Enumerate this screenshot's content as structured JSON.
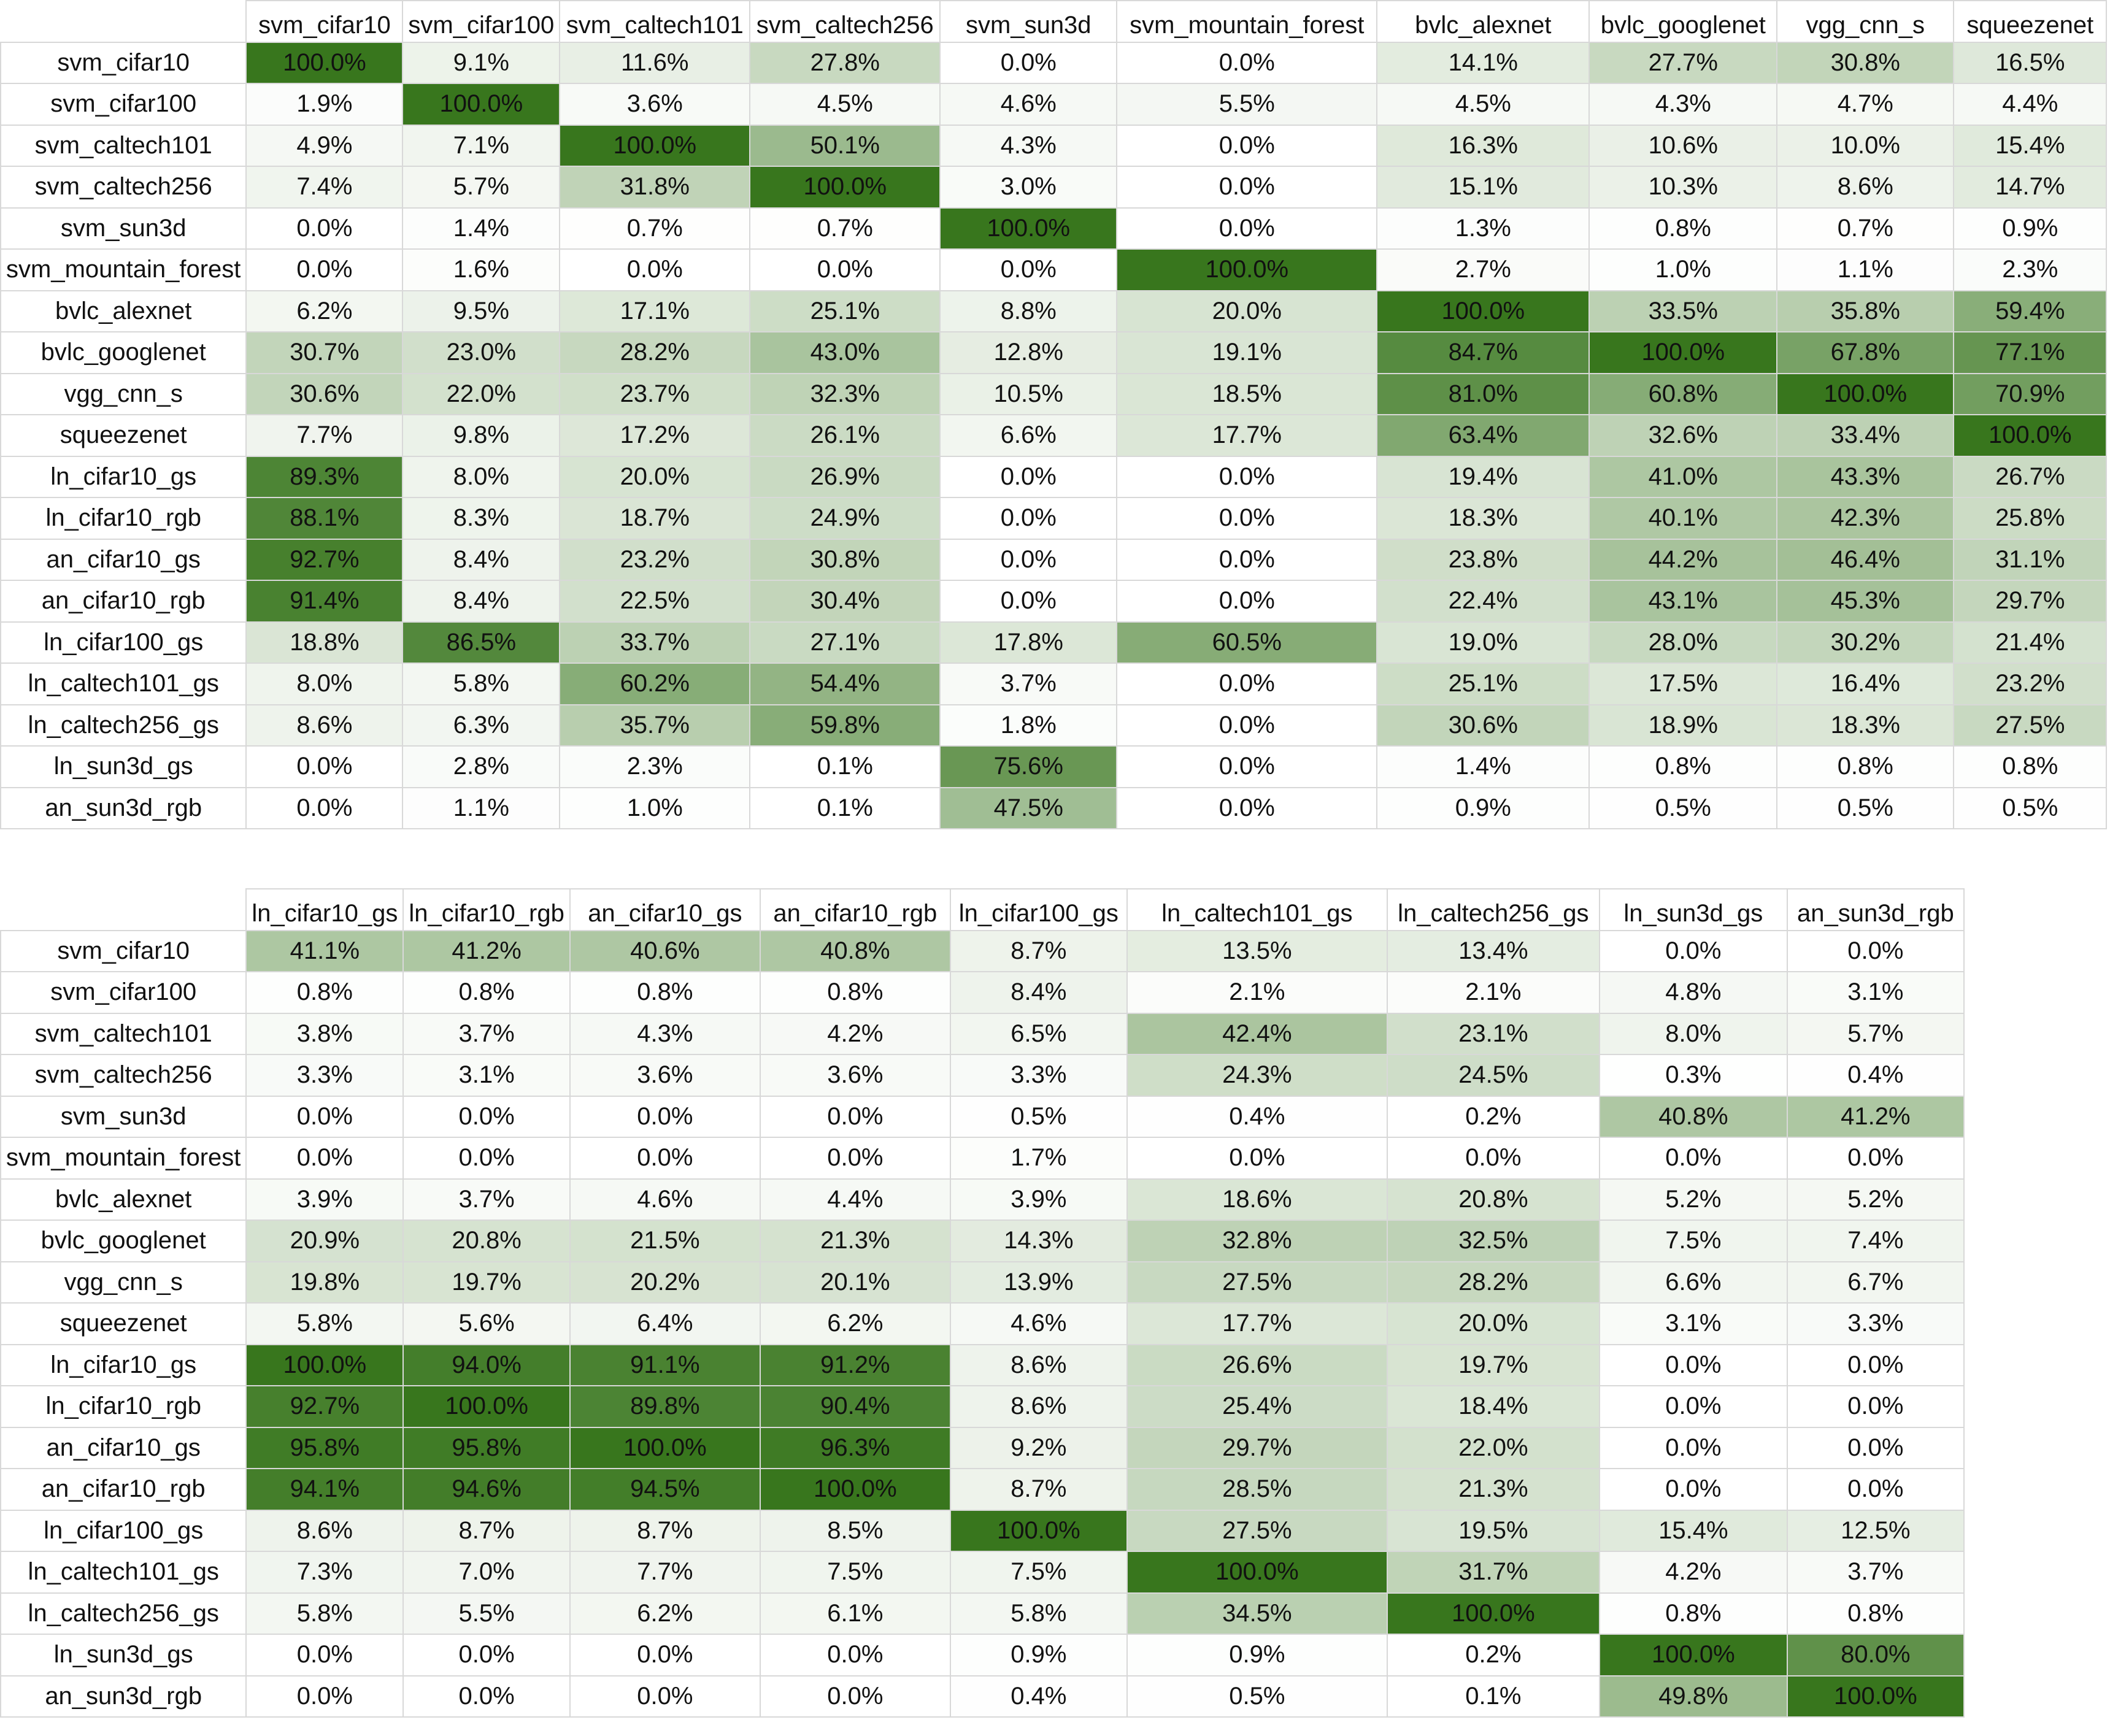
{
  "chart_data": [
    {
      "type": "heatmap",
      "title": "",
      "color_scale": {
        "low": "#ffffff",
        "high": "#38761d"
      },
      "columns": [
        "svm_cifar10",
        "svm_cifar100",
        "svm_caltech101",
        "svm_caltech256",
        "svm_sun3d",
        "svm_mountain_forest",
        "bvlc_alexnet",
        "bvlc_googlenet",
        "vgg_cnn_s",
        "squeezenet"
      ],
      "rows": [
        "svm_cifar10",
        "svm_cifar100",
        "svm_caltech101",
        "svm_caltech256",
        "svm_sun3d",
        "svm_mountain_forest",
        "bvlc_alexnet",
        "bvlc_googlenet",
        "vgg_cnn_s",
        "squeezenet",
        "ln_cifar10_gs",
        "ln_cifar10_rgb",
        "an_cifar10_gs",
        "an_cifar10_rgb",
        "ln_cifar100_gs",
        "ln_caltech101_gs",
        "ln_caltech256_gs",
        "ln_sun3d_gs",
        "an_sun3d_rgb"
      ],
      "values": [
        [
          "100.0%",
          "9.1%",
          "11.6%",
          "27.8%",
          "0.0%",
          "0.0%",
          "14.1%",
          "27.7%",
          "30.8%",
          "16.5%"
        ],
        [
          "1.9%",
          "100.0%",
          "3.6%",
          "4.5%",
          "4.6%",
          "5.5%",
          "4.5%",
          "4.3%",
          "4.7%",
          "4.4%"
        ],
        [
          "4.9%",
          "7.1%",
          "100.0%",
          "50.1%",
          "4.3%",
          "0.0%",
          "16.3%",
          "10.6%",
          "10.0%",
          "15.4%"
        ],
        [
          "7.4%",
          "5.7%",
          "31.8%",
          "100.0%",
          "3.0%",
          "0.0%",
          "15.1%",
          "10.3%",
          "8.6%",
          "14.7%"
        ],
        [
          "0.0%",
          "1.4%",
          "0.7%",
          "0.7%",
          "100.0%",
          "0.0%",
          "1.3%",
          "0.8%",
          "0.7%",
          "0.9%"
        ],
        [
          "0.0%",
          "1.6%",
          "0.0%",
          "0.0%",
          "0.0%",
          "100.0%",
          "2.7%",
          "1.0%",
          "1.1%",
          "2.3%"
        ],
        [
          "6.2%",
          "9.5%",
          "17.1%",
          "25.1%",
          "8.8%",
          "20.0%",
          "100.0%",
          "33.5%",
          "35.8%",
          "59.4%"
        ],
        [
          "30.7%",
          "23.0%",
          "28.2%",
          "43.0%",
          "12.8%",
          "19.1%",
          "84.7%",
          "100.0%",
          "67.8%",
          "77.1%"
        ],
        [
          "30.6%",
          "22.0%",
          "23.7%",
          "32.3%",
          "10.5%",
          "18.5%",
          "81.0%",
          "60.8%",
          "100.0%",
          "70.9%"
        ],
        [
          "7.7%",
          "9.8%",
          "17.2%",
          "26.1%",
          "6.6%",
          "17.7%",
          "63.4%",
          "32.6%",
          "33.4%",
          "100.0%"
        ],
        [
          "89.3%",
          "8.0%",
          "20.0%",
          "26.9%",
          "0.0%",
          "0.0%",
          "19.4%",
          "41.0%",
          "43.3%",
          "26.7%"
        ],
        [
          "88.1%",
          "8.3%",
          "18.7%",
          "24.9%",
          "0.0%",
          "0.0%",
          "18.3%",
          "40.1%",
          "42.3%",
          "25.8%"
        ],
        [
          "92.7%",
          "8.4%",
          "23.2%",
          "30.8%",
          "0.0%",
          "0.0%",
          "23.8%",
          "44.2%",
          "46.4%",
          "31.1%"
        ],
        [
          "91.4%",
          "8.4%",
          "22.5%",
          "30.4%",
          "0.0%",
          "0.0%",
          "22.4%",
          "43.1%",
          "45.3%",
          "29.7%"
        ],
        [
          "18.8%",
          "86.5%",
          "33.7%",
          "27.1%",
          "17.8%",
          "60.5%",
          "19.0%",
          "28.0%",
          "30.2%",
          "21.4%"
        ],
        [
          "8.0%",
          "5.8%",
          "60.2%",
          "54.4%",
          "3.7%",
          "0.0%",
          "25.1%",
          "17.5%",
          "16.4%",
          "23.2%"
        ],
        [
          "8.6%",
          "6.3%",
          "35.7%",
          "59.8%",
          "1.8%",
          "0.0%",
          "30.6%",
          "18.9%",
          "18.3%",
          "27.5%"
        ],
        [
          "0.0%",
          "2.8%",
          "2.3%",
          "0.1%",
          "75.6%",
          "0.0%",
          "1.4%",
          "0.8%",
          "0.8%",
          "0.8%"
        ],
        [
          "0.0%",
          "1.1%",
          "1.0%",
          "0.1%",
          "47.5%",
          "0.0%",
          "0.9%",
          "0.5%",
          "0.5%",
          "0.5%"
        ]
      ]
    },
    {
      "type": "heatmap",
      "title": "",
      "color_scale": {
        "low": "#ffffff",
        "high": "#38761d"
      },
      "columns": [
        "ln_cifar10_gs",
        "ln_cifar10_rgb",
        "an_cifar10_gs",
        "an_cifar10_rgb",
        "ln_cifar100_gs",
        "ln_caltech101_gs",
        "ln_caltech256_gs",
        "ln_sun3d_gs",
        "an_sun3d_rgb"
      ],
      "rows": [
        "svm_cifar10",
        "svm_cifar100",
        "svm_caltech101",
        "svm_caltech256",
        "svm_sun3d",
        "svm_mountain_forest",
        "bvlc_alexnet",
        "bvlc_googlenet",
        "vgg_cnn_s",
        "squeezenet",
        "ln_cifar10_gs",
        "ln_cifar10_rgb",
        "an_cifar10_gs",
        "an_cifar10_rgb",
        "ln_cifar100_gs",
        "ln_caltech101_gs",
        "ln_caltech256_gs",
        "ln_sun3d_gs",
        "an_sun3d_rgb"
      ],
      "values": [
        [
          "41.1%",
          "41.2%",
          "40.6%",
          "40.8%",
          "8.7%",
          "13.5%",
          "13.4%",
          "0.0%",
          "0.0%"
        ],
        [
          "0.8%",
          "0.8%",
          "0.8%",
          "0.8%",
          "8.4%",
          "2.1%",
          "2.1%",
          "4.8%",
          "3.1%"
        ],
        [
          "3.8%",
          "3.7%",
          "4.3%",
          "4.2%",
          "6.5%",
          "42.4%",
          "23.1%",
          "8.0%",
          "5.7%"
        ],
        [
          "3.3%",
          "3.1%",
          "3.6%",
          "3.6%",
          "3.3%",
          "24.3%",
          "24.5%",
          "0.3%",
          "0.4%"
        ],
        [
          "0.0%",
          "0.0%",
          "0.0%",
          "0.0%",
          "0.5%",
          "0.4%",
          "0.2%",
          "40.8%",
          "41.2%"
        ],
        [
          "0.0%",
          "0.0%",
          "0.0%",
          "0.0%",
          "1.7%",
          "0.0%",
          "0.0%",
          "0.0%",
          "0.0%"
        ],
        [
          "3.9%",
          "3.7%",
          "4.6%",
          "4.4%",
          "3.9%",
          "18.6%",
          "20.8%",
          "5.2%",
          "5.2%"
        ],
        [
          "20.9%",
          "20.8%",
          "21.5%",
          "21.3%",
          "14.3%",
          "32.8%",
          "32.5%",
          "7.5%",
          "7.4%"
        ],
        [
          "19.8%",
          "19.7%",
          "20.2%",
          "20.1%",
          "13.9%",
          "27.5%",
          "28.2%",
          "6.6%",
          "6.7%"
        ],
        [
          "5.8%",
          "5.6%",
          "6.4%",
          "6.2%",
          "4.6%",
          "17.7%",
          "20.0%",
          "3.1%",
          "3.3%"
        ],
        [
          "100.0%",
          "94.0%",
          "91.1%",
          "91.2%",
          "8.6%",
          "26.6%",
          "19.7%",
          "0.0%",
          "0.0%"
        ],
        [
          "92.7%",
          "100.0%",
          "89.8%",
          "90.4%",
          "8.6%",
          "25.4%",
          "18.4%",
          "0.0%",
          "0.0%"
        ],
        [
          "95.8%",
          "95.8%",
          "100.0%",
          "96.3%",
          "9.2%",
          "29.7%",
          "22.0%",
          "0.0%",
          "0.0%"
        ],
        [
          "94.1%",
          "94.6%",
          "94.5%",
          "100.0%",
          "8.7%",
          "28.5%",
          "21.3%",
          "0.0%",
          "0.0%"
        ],
        [
          "8.6%",
          "8.7%",
          "8.7%",
          "8.5%",
          "100.0%",
          "27.5%",
          "19.5%",
          "15.4%",
          "12.5%"
        ],
        [
          "7.3%",
          "7.0%",
          "7.7%",
          "7.5%",
          "7.5%",
          "100.0%",
          "31.7%",
          "4.2%",
          "3.7%"
        ],
        [
          "5.8%",
          "5.5%",
          "6.2%",
          "6.1%",
          "5.8%",
          "34.5%",
          "100.0%",
          "0.8%",
          "0.8%"
        ],
        [
          "0.0%",
          "0.0%",
          "0.0%",
          "0.0%",
          "0.9%",
          "0.9%",
          "0.2%",
          "100.0%",
          "80.0%"
        ],
        [
          "0.0%",
          "0.0%",
          "0.0%",
          "0.0%",
          "0.4%",
          "0.5%",
          "0.1%",
          "49.8%",
          "100.0%"
        ]
      ]
    }
  ]
}
